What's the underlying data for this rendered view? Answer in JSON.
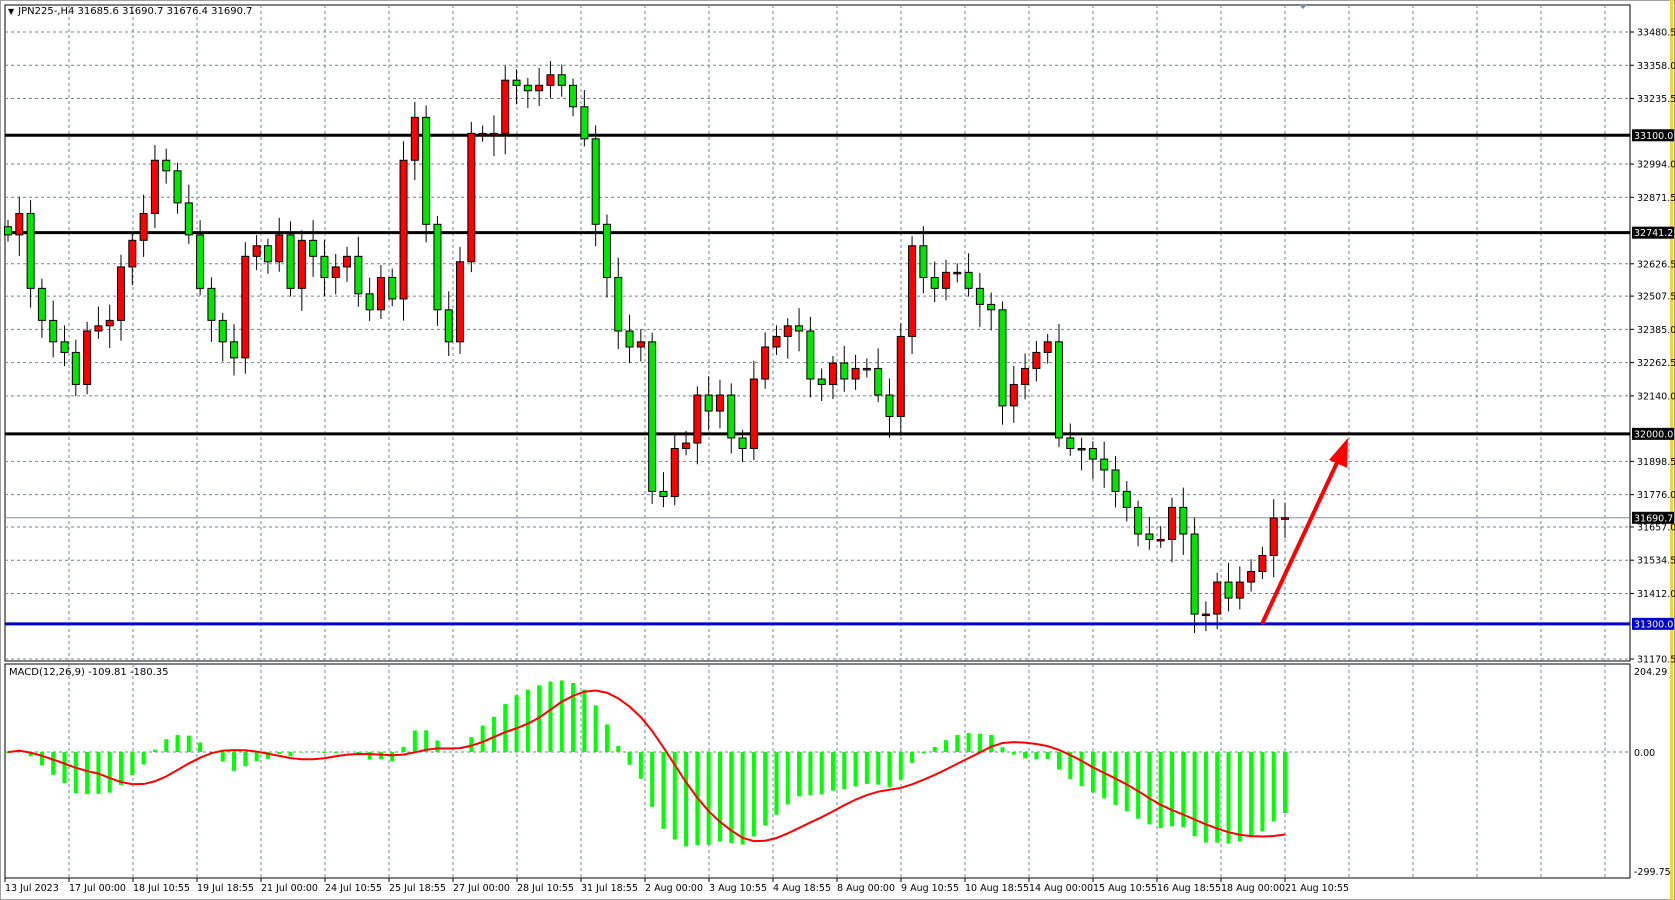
{
  "window": {
    "symbol_header": "JPN225-,H4  31685.6 31690.7 31676.4 31690.7",
    "macd_header": "MACD(12,26,9) -109.81 -180.35"
  },
  "colors": {
    "bull_candle": "#ff0000",
    "bear_candle": "#00e600",
    "macd_histogram": "#00ff00",
    "macd_signal": "#ff0000",
    "support_line": "#0000cc",
    "resistance_lines": "#000000",
    "arrow": "#ff0000",
    "grid": "#708090"
  },
  "chart_data": [
    {
      "type": "candlestick",
      "symbol": "JPN225-",
      "timeframe": "H4",
      "ylim": [
        31170.5,
        33480.5
      ],
      "grid": true,
      "y_ticks": [
        "33480.5",
        "33358.0",
        "33235.5",
        "32994.0",
        "32871.5",
        "32626.5",
        "32507.5",
        "32385.0",
        "32262.5",
        "32140.0",
        "31898.5",
        "31776.0",
        "31657.0",
        "31534.5",
        "31412.0",
        "31170.5"
      ],
      "x_ticks": [
        "13 Jul 2023",
        "17 Jul 00:00",
        "18 Jul 10:55",
        "19 Jul 18:55",
        "21 Jul 00:00",
        "24 Jul 10:55",
        "25 Jul 18:55",
        "27 Jul 00:00",
        "28 Jul 10:55",
        "31 Jul 18:55",
        "2 Aug 00:00",
        "3 Aug 10:55",
        "4 Aug 18:55",
        "8 Aug 00:00",
        "9 Aug 10:55",
        "10 Aug 18:55",
        "14 Aug 00:00",
        "15 Aug 10:55",
        "16 Aug 18:55",
        "18 Aug 00:00",
        "21 Aug 10:55"
      ],
      "close": [
        32733,
        32812,
        32536,
        32418,
        32339,
        32300,
        32182,
        32379,
        32398,
        32418,
        32615,
        32713,
        32812,
        33008,
        32969,
        32851,
        32733,
        32536,
        32418,
        32339,
        32280,
        32654,
        32693,
        32634,
        32733,
        32536,
        32713,
        32654,
        32576,
        32615,
        32654,
        32516,
        32457,
        32576,
        32497,
        33008,
        33166,
        32772,
        32457,
        32339,
        32634,
        33107,
        33107,
        33107,
        33303,
        33284,
        33264,
        33284,
        33323,
        33284,
        33205,
        33087,
        32772,
        32576,
        32379,
        32320,
        32339,
        31788,
        31769,
        31946,
        31966,
        32143,
        32084,
        32143,
        31985,
        31946,
        32202,
        32320,
        32359,
        32398,
        32379,
        32202,
        32182,
        32261,
        32202,
        32241,
        32241,
        32143,
        32064,
        32359,
        32693,
        32576,
        32536,
        32595,
        32595,
        32536,
        32477,
        32457,
        32103,
        32182,
        32241,
        32300,
        32339,
        31985,
        31946,
        31946,
        31907,
        31867,
        31788,
        31729,
        31631,
        31611,
        31611,
        31729,
        31631,
        31336,
        31336,
        31454,
        31395,
        31454,
        31493,
        31552,
        31690,
        31690.7
      ],
      "horizontal_lines": [
        {
          "price": 33100.0,
          "label": "33100.0",
          "color": "#000000"
        },
        {
          "price": 32741.2,
          "label": "32741.2",
          "color": "#000000"
        },
        {
          "price": 32000.0,
          "label": "32000.0",
          "color": "#000000"
        },
        {
          "price": 31300.0,
          "label": "31300.0",
          "color": "#0000cc"
        }
      ],
      "current_price": {
        "price": 31690.7,
        "label": "31690.7"
      },
      "annotation": {
        "type": "arrow",
        "from_price": 31300,
        "to_price": 32000,
        "color": "#ff0000",
        "direction": "up"
      }
    },
    {
      "type": "macd",
      "params": [
        12,
        26,
        9
      ],
      "main": -109.81,
      "signal": -180.35,
      "ylim": [
        -299.75,
        204.29
      ],
      "y_ticks": [
        "204.29",
        "0.00",
        "-299.75"
      ]
    }
  ]
}
